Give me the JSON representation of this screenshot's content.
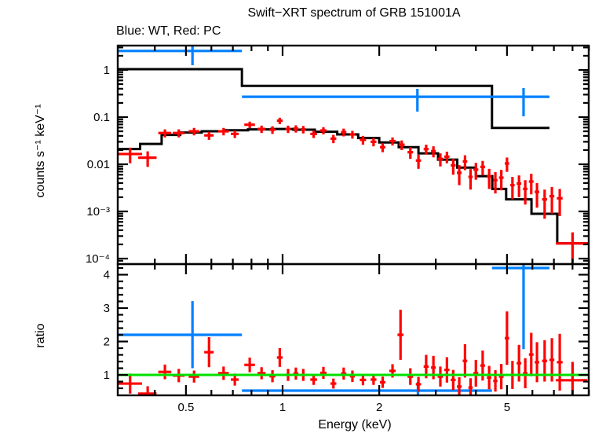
{
  "title": "Swift−XRT spectrum of GRB 151001A",
  "subtitle": "Blue: WT, Red: PC",
  "colors": {
    "wt": "#0080ff",
    "pc": "#ff0000",
    "model": "#000000",
    "unity_line": "#00e000",
    "frame": "#000000",
    "background": "#ffffff"
  },
  "chart_data": [
    {
      "type": "scatter",
      "name": "spectrum-panel",
      "title": "Swift−XRT spectrum of GRB 151001A",
      "subtitle": "Blue: WT, Red: PC",
      "xlabel": "Energy (keV)",
      "ylabel": "counts s⁻¹ keV⁻¹",
      "xscale": "log",
      "yscale": "log",
      "xlim": [
        0.307,
        9.0
      ],
      "ylim": [
        7.6e-05,
        3.3
      ],
      "xtick_values": [
        0.5,
        1,
        2,
        5
      ],
      "xtick_labels": [
        "0.5",
        "1",
        "2",
        "5"
      ],
      "ytick_values": [
        1,
        0.1,
        0.01,
        0.001,
        0.0001
      ],
      "ytick_labels": [
        "1",
        "0.1",
        "0.01",
        "10⁻³",
        "10⁻⁴"
      ],
      "grid": false,
      "legend": "title-text colors only",
      "series": [
        {
          "name": "WT data",
          "color": "#0080ff",
          "style": "cross-errorbar",
          "points": [
            {
              "e": 0.524,
              "elo": 0.307,
              "ehi": 0.747,
              "v": 2.53,
              "vlo": 1.26,
              "vhi": 3.4
            },
            {
              "e": 2.63,
              "elo": 0.747,
              "ehi": 4.49,
              "v": 0.27,
              "vlo": 0.131,
              "vhi": 0.398
            },
            {
              "e": 5.63,
              "elo": 4.49,
              "ehi": 6.78,
              "v": 0.27,
              "vlo": 0.104,
              "vhi": 0.414
            }
          ]
        },
        {
          "name": "WT model",
          "color": "#000000",
          "style": "step-histogram",
          "bins": [
            [
              0.307,
              0.747,
              1.04
            ],
            [
              0.747,
              4.49,
              0.46
            ],
            [
              4.49,
              6.78,
              0.059
            ]
          ]
        },
        {
          "name": "PC model",
          "color": "#000000",
          "style": "step-histogram",
          "bins": [
            [
              0.307,
              0.36,
              0.021
            ],
            [
              0.36,
              0.42,
              0.027
            ],
            [
              0.42,
              0.48,
              0.042
            ],
            [
              0.48,
              0.56,
              0.047
            ],
            [
              0.56,
              0.66,
              0.05
            ],
            [
              0.66,
              0.78,
              0.0525
            ],
            [
              0.78,
              0.92,
              0.055
            ],
            [
              0.92,
              1.08,
              0.056
            ],
            [
              1.08,
              1.26,
              0.054
            ],
            [
              1.26,
              1.48,
              0.049
            ],
            [
              1.48,
              1.72,
              0.043
            ],
            [
              1.72,
              2.0,
              0.036
            ],
            [
              2.0,
              2.3,
              0.029
            ],
            [
              2.3,
              2.65,
              0.023
            ],
            [
              2.65,
              3.05,
              0.017
            ],
            [
              3.05,
              3.5,
              0.0125
            ],
            [
              3.5,
              4.0,
              0.0085
            ],
            [
              4.0,
              4.5,
              0.0056
            ],
            [
              4.5,
              4.97,
              0.003
            ],
            [
              4.97,
              5.96,
              0.0018
            ],
            [
              5.96,
              7.17,
              0.00089
            ],
            [
              7.17,
              9.0,
              0.00021
            ]
          ]
        },
        {
          "name": "PC data",
          "color": "#ff0000",
          "style": "cross-errorbar",
          "points_format": [
            "e",
            "e_halfwidth",
            "value",
            "value_err"
          ],
          "points": [
            [
              0.335,
              0.03,
              0.0165,
              0.006
            ],
            [
              0.38,
              0.025,
              0.0138,
              0.005
            ],
            [
              0.43,
              0.02,
              0.046,
              0.009
            ],
            [
              0.475,
              0.02,
              0.046,
              0.009
            ],
            [
              0.53,
              0.02,
              0.05,
              0.009
            ],
            [
              0.59,
              0.02,
              0.041,
              0.008
            ],
            [
              0.655,
              0.025,
              0.05,
              0.009
            ],
            [
              0.71,
              0.02,
              0.044,
              0.008
            ],
            [
              0.79,
              0.03,
              0.069,
              0.011
            ],
            [
              0.86,
              0.025,
              0.056,
              0.01
            ],
            [
              0.93,
              0.02,
              0.054,
              0.01
            ],
            [
              0.98,
              0.02,
              0.084,
              0.013
            ],
            [
              1.04,
              0.02,
              0.056,
              0.01
            ],
            [
              1.1,
              0.02,
              0.057,
              0.01
            ],
            [
              1.16,
              0.02,
              0.055,
              0.01
            ],
            [
              1.25,
              0.03,
              0.044,
              0.008
            ],
            [
              1.34,
              0.03,
              0.052,
              0.009
            ],
            [
              1.44,
              0.03,
              0.035,
              0.007
            ],
            [
              1.55,
              0.03,
              0.048,
              0.009
            ],
            [
              1.65,
              0.03,
              0.043,
              0.008
            ],
            [
              1.78,
              0.04,
              0.033,
              0.007
            ],
            [
              1.92,
              0.04,
              0.03,
              0.006
            ],
            [
              2.05,
              0.04,
              0.023,
              0.005
            ],
            [
              2.2,
              0.05,
              0.031,
              0.006
            ],
            [
              2.35,
              0.05,
              0.026,
              0.006
            ],
            [
              2.5,
              0.05,
              0.018,
              0.005
            ],
            [
              2.65,
              0.05,
              0.012,
              0.004
            ],
            [
              2.8,
              0.05,
              0.021,
              0.005
            ],
            [
              2.95,
              0.05,
              0.019,
              0.005
            ],
            [
              3.1,
              0.06,
              0.013,
              0.004
            ],
            [
              3.25,
              0.06,
              0.0145,
              0.004
            ],
            [
              3.4,
              0.06,
              0.0095,
              0.0035
            ],
            [
              3.55,
              0.06,
              0.0066,
              0.003
            ],
            [
              3.7,
              0.06,
              0.0115,
              0.004
            ],
            [
              3.85,
              0.06,
              0.0054,
              0.0025
            ],
            [
              4.0,
              0.07,
              0.0077,
              0.003
            ],
            [
              4.2,
              0.07,
              0.0088,
              0.003
            ],
            [
              4.4,
              0.07,
              0.0055,
              0.0025
            ],
            [
              4.6,
              0.07,
              0.0046,
              0.0022
            ],
            [
              4.8,
              0.08,
              0.0052,
              0.0024
            ],
            [
              5.0,
              0.08,
              0.0104,
              0.0035
            ],
            [
              5.2,
              0.08,
              0.0036,
              0.0018
            ],
            [
              5.45,
              0.09,
              0.0039,
              0.0019
            ],
            [
              5.7,
              0.09,
              0.003,
              0.0016
            ],
            [
              5.95,
              0.1,
              0.0043,
              0.002
            ],
            [
              6.2,
              0.1,
              0.0026,
              0.0014
            ],
            [
              6.55,
              0.12,
              0.0018,
              0.0011
            ],
            [
              6.9,
              0.12,
              0.0021,
              0.0012
            ],
            [
              7.3,
              0.15,
              0.0019,
              0.0011
            ],
            [
              8.0,
              0.9,
              0.00021,
              0.00015
            ]
          ]
        }
      ]
    },
    {
      "type": "scatter",
      "name": "ratio-panel",
      "xlabel": "Energy (keV)",
      "ylabel": "ratio",
      "xscale": "log",
      "yscale": "linear",
      "xlim": [
        0.307,
        9.0
      ],
      "ylim": [
        0.39,
        4.32
      ],
      "xtick_values": [
        0.5,
        1,
        2,
        5
      ],
      "xtick_labels": [
        "0.5",
        "1",
        "2",
        "5"
      ],
      "ytick_values": [
        1,
        2,
        3,
        4
      ],
      "ytick_labels": [
        "1",
        "2",
        "3",
        "4"
      ],
      "unity_line": {
        "value": 1,
        "color": "#00e000"
      },
      "series": [
        {
          "name": "WT ratio",
          "color": "#0080ff",
          "style": "cross-errorbar",
          "points": [
            {
              "e": 0.524,
              "elo": 0.307,
              "ehi": 0.747,
              "v": 2.2,
              "vlo": 1.2,
              "vhi": 3.21
            },
            {
              "e": 2.64,
              "elo": 0.747,
              "ehi": 4.49,
              "v": 0.53,
              "vlo": 0.27,
              "vhi": 0.79
            },
            {
              "e": 5.63,
              "elo": 4.49,
              "ehi": 6.78,
              "v": 4.2,
              "vlo": 1.77,
              "vhi": 4.4
            }
          ]
        },
        {
          "name": "PC ratio",
          "color": "#ff0000",
          "style": "cross-errorbar",
          "points_format": [
            "e",
            "e_halfwidth",
            "ratio",
            "ratio_err"
          ],
          "points": [
            [
              0.335,
              0.03,
              0.74,
              0.3
            ],
            [
              0.38,
              0.025,
              0.44,
              0.22
            ],
            [
              0.43,
              0.02,
              1.09,
              0.22
            ],
            [
              0.475,
              0.02,
              0.98,
              0.2
            ],
            [
              0.53,
              0.02,
              0.95,
              0.18
            ],
            [
              0.59,
              0.02,
              1.68,
              0.45
            ],
            [
              0.655,
              0.025,
              1.05,
              0.2
            ],
            [
              0.71,
              0.02,
              0.86,
              0.18
            ],
            [
              0.79,
              0.03,
              1.3,
              0.22
            ],
            [
              0.86,
              0.025,
              1.05,
              0.18
            ],
            [
              0.93,
              0.02,
              0.96,
              0.18
            ],
            [
              0.98,
              0.02,
              1.52,
              0.28
            ],
            [
              1.04,
              0.02,
              1.0,
              0.18
            ],
            [
              1.1,
              0.02,
              1.04,
              0.18
            ],
            [
              1.16,
              0.02,
              1.0,
              0.18
            ],
            [
              1.25,
              0.03,
              0.86,
              0.16
            ],
            [
              1.34,
              0.03,
              1.06,
              0.18
            ],
            [
              1.44,
              0.03,
              0.74,
              0.15
            ],
            [
              1.55,
              0.03,
              1.04,
              0.18
            ],
            [
              1.65,
              0.03,
              0.96,
              0.17
            ],
            [
              1.78,
              0.04,
              0.85,
              0.16
            ],
            [
              1.92,
              0.04,
              0.86,
              0.16
            ],
            [
              2.05,
              0.04,
              0.78,
              0.17
            ],
            [
              2.2,
              0.05,
              1.12,
              0.2
            ],
            [
              2.33,
              0.05,
              2.2,
              0.75
            ],
            [
              2.5,
              0.05,
              0.95,
              0.25
            ],
            [
              2.65,
              0.05,
              0.72,
              0.22
            ],
            [
              2.8,
              0.05,
              1.25,
              0.35
            ],
            [
              2.95,
              0.05,
              1.22,
              0.35
            ],
            [
              3.1,
              0.06,
              0.95,
              0.3
            ],
            [
              3.25,
              0.06,
              1.15,
              0.38
            ],
            [
              3.4,
              0.06,
              0.85,
              0.3
            ],
            [
              3.55,
              0.06,
              0.65,
              0.28
            ],
            [
              3.7,
              0.06,
              1.42,
              0.5
            ],
            [
              3.85,
              0.06,
              0.62,
              0.28
            ],
            [
              4.0,
              0.07,
              1.05,
              0.4
            ],
            [
              4.2,
              0.07,
              1.28,
              0.45
            ],
            [
              4.4,
              0.07,
              0.92,
              0.35
            ],
            [
              4.6,
              0.07,
              0.82,
              0.32
            ],
            [
              4.8,
              0.08,
              0.95,
              0.38
            ],
            [
              5.0,
              0.08,
              2.1,
              0.8
            ],
            [
              5.2,
              0.08,
              1.0,
              0.42
            ],
            [
              5.45,
              0.09,
              1.35,
              0.55
            ],
            [
              5.7,
              0.09,
              1.05,
              0.45
            ],
            [
              5.95,
              0.1,
              1.61,
              0.65
            ],
            [
              6.2,
              0.1,
              1.38,
              0.6
            ],
            [
              6.55,
              0.12,
              1.42,
              0.62
            ],
            [
              6.9,
              0.12,
              1.45,
              0.65
            ],
            [
              7.3,
              0.15,
              1.38,
              0.85
            ],
            [
              8.0,
              0.9,
              0.84,
              0.55
            ]
          ]
        }
      ]
    }
  ]
}
